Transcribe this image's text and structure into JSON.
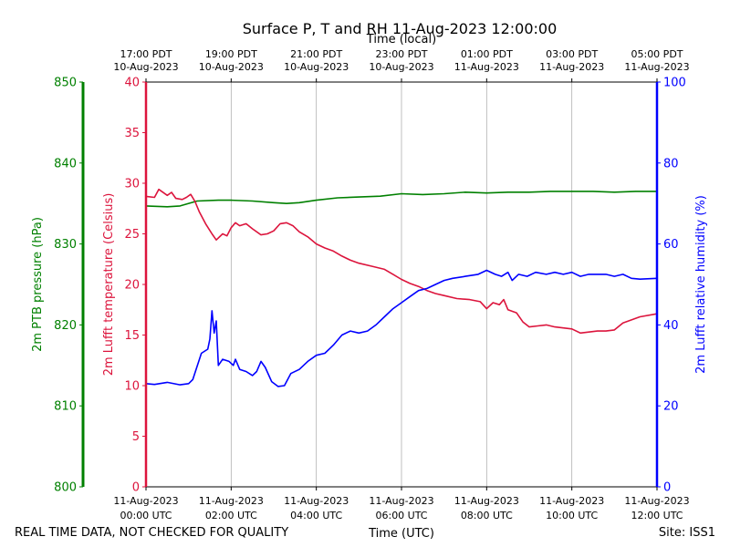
{
  "chart_data": {
    "type": "line",
    "title": "Surface P, T and RH 11-Aug-2023 12:00:00",
    "top_axis_label": "Time (local)",
    "xlabel": "Time (UTC)",
    "footer_left": "REAL TIME DATA, NOT CHECKED FOR QUALITY",
    "footer_right": "Site: ISS1",
    "x_range_hours": [
      0,
      12
    ],
    "grid": "vertical",
    "x_ticks_bottom": [
      {
        "h": 0,
        "l1": "11-Aug-2023",
        "l2": "00:00 UTC"
      },
      {
        "h": 2,
        "l1": "11-Aug-2023",
        "l2": "02:00 UTC"
      },
      {
        "h": 4,
        "l1": "11-Aug-2023",
        "l2": "04:00 UTC"
      },
      {
        "h": 6,
        "l1": "11-Aug-2023",
        "l2": "06:00 UTC"
      },
      {
        "h": 8,
        "l1": "11-Aug-2023",
        "l2": "08:00 UTC"
      },
      {
        "h": 10,
        "l1": "11-Aug-2023",
        "l2": "10:00 UTC"
      },
      {
        "h": 12,
        "l1": "11-Aug-2023",
        "l2": "12:00 UTC"
      }
    ],
    "x_ticks_top": [
      {
        "h": 0,
        "l1": "17:00 PDT",
        "l2": "10-Aug-2023"
      },
      {
        "h": 2,
        "l1": "19:00 PDT",
        "l2": "10-Aug-2023"
      },
      {
        "h": 4,
        "l1": "21:00 PDT",
        "l2": "10-Aug-2023"
      },
      {
        "h": 6,
        "l1": "23:00 PDT",
        "l2": "10-Aug-2023"
      },
      {
        "h": 8,
        "l1": "01:00 PDT",
        "l2": "11-Aug-2023"
      },
      {
        "h": 10,
        "l1": "03:00 PDT",
        "l2": "11-Aug-2023"
      },
      {
        "h": 12,
        "l1": "05:00 PDT",
        "l2": "11-Aug-2023"
      }
    ],
    "axes": {
      "pressure": {
        "label": "2m PTB pressure (hPa)",
        "range": [
          800,
          850
        ],
        "ticks": [
          800,
          810,
          820,
          830,
          840,
          850
        ],
        "color": "#008000"
      },
      "temperature": {
        "label": "2m Lufft temperature (Celsius)",
        "range": [
          0,
          40
        ],
        "ticks": [
          0,
          5,
          10,
          15,
          20,
          25,
          30,
          35,
          40
        ],
        "color": "#dc143c"
      },
      "humidity": {
        "label": "2m Lufft relative humidity (%)",
        "range": [
          0,
          100
        ],
        "ticks": [
          0,
          20,
          40,
          60,
          80,
          100
        ],
        "color": "#0000ff"
      }
    },
    "series": [
      {
        "name": "pressure",
        "axis": "pressure",
        "color": "#008000",
        "points": [
          [
            0,
            834.7
          ],
          [
            0.5,
            834.6
          ],
          [
            0.8,
            834.7
          ],
          [
            1.2,
            835.3
          ],
          [
            1.7,
            835.4
          ],
          [
            2.0,
            835.4
          ],
          [
            2.5,
            835.3
          ],
          [
            3.0,
            835.1
          ],
          [
            3.3,
            835.0
          ],
          [
            3.6,
            835.1
          ],
          [
            4.0,
            835.4
          ],
          [
            4.5,
            835.7
          ],
          [
            5.0,
            835.8
          ],
          [
            5.5,
            835.9
          ],
          [
            6.0,
            836.2
          ],
          [
            6.5,
            836.1
          ],
          [
            7.0,
            836.2
          ],
          [
            7.5,
            836.4
          ],
          [
            8.0,
            836.3
          ],
          [
            8.5,
            836.4
          ],
          [
            9.0,
            836.4
          ],
          [
            9.5,
            836.5
          ],
          [
            10.0,
            836.5
          ],
          [
            10.5,
            836.5
          ],
          [
            11.0,
            836.4
          ],
          [
            11.5,
            836.5
          ],
          [
            12.0,
            836.5
          ]
        ]
      },
      {
        "name": "temperature",
        "axis": "temperature",
        "color": "#dc143c",
        "points": [
          [
            0,
            28.7
          ],
          [
            0.2,
            28.6
          ],
          [
            0.3,
            29.4
          ],
          [
            0.5,
            28.8
          ],
          [
            0.6,
            29.1
          ],
          [
            0.7,
            28.5
          ],
          [
            0.85,
            28.4
          ],
          [
            0.95,
            28.6
          ],
          [
            1.05,
            28.9
          ],
          [
            1.15,
            28.2
          ],
          [
            1.25,
            27.2
          ],
          [
            1.4,
            26.0
          ],
          [
            1.55,
            25.0
          ],
          [
            1.65,
            24.4
          ],
          [
            1.8,
            25.0
          ],
          [
            1.9,
            24.8
          ],
          [
            2.0,
            25.6
          ],
          [
            2.1,
            26.1
          ],
          [
            2.2,
            25.8
          ],
          [
            2.35,
            26.0
          ],
          [
            2.5,
            25.5
          ],
          [
            2.7,
            24.9
          ],
          [
            2.85,
            25.0
          ],
          [
            3.0,
            25.3
          ],
          [
            3.15,
            26.0
          ],
          [
            3.3,
            26.1
          ],
          [
            3.45,
            25.8
          ],
          [
            3.6,
            25.2
          ],
          [
            3.8,
            24.7
          ],
          [
            4.0,
            24.0
          ],
          [
            4.2,
            23.6
          ],
          [
            4.4,
            23.3
          ],
          [
            4.6,
            22.8
          ],
          [
            4.8,
            22.4
          ],
          [
            5.0,
            22.1
          ],
          [
            5.3,
            21.8
          ],
          [
            5.6,
            21.5
          ],
          [
            5.8,
            21.0
          ],
          [
            6.0,
            20.5
          ],
          [
            6.2,
            20.1
          ],
          [
            6.4,
            19.8
          ],
          [
            6.6,
            19.4
          ],
          [
            6.8,
            19.1
          ],
          [
            7.0,
            18.9
          ],
          [
            7.3,
            18.6
          ],
          [
            7.6,
            18.5
          ],
          [
            7.85,
            18.3
          ],
          [
            8.0,
            17.6
          ],
          [
            8.15,
            18.2
          ],
          [
            8.3,
            18.0
          ],
          [
            8.4,
            18.5
          ],
          [
            8.5,
            17.5
          ],
          [
            8.7,
            17.2
          ],
          [
            8.85,
            16.3
          ],
          [
            9.0,
            15.8
          ],
          [
            9.2,
            15.9
          ],
          [
            9.4,
            16.0
          ],
          [
            9.6,
            15.8
          ],
          [
            9.8,
            15.7
          ],
          [
            10.0,
            15.6
          ],
          [
            10.2,
            15.2
          ],
          [
            10.4,
            15.3
          ],
          [
            10.6,
            15.4
          ],
          [
            10.8,
            15.4
          ],
          [
            11.0,
            15.5
          ],
          [
            11.2,
            16.2
          ],
          [
            11.4,
            16.5
          ],
          [
            11.6,
            16.8
          ],
          [
            12.0,
            17.1
          ]
        ]
      },
      {
        "name": "humidity",
        "axis": "humidity",
        "color": "#0000ff",
        "points": [
          [
            0,
            25.5
          ],
          [
            0.2,
            25.3
          ],
          [
            0.5,
            25.8
          ],
          [
            0.8,
            25.2
          ],
          [
            1.0,
            25.5
          ],
          [
            1.1,
            26.5
          ],
          [
            1.3,
            33.0
          ],
          [
            1.45,
            34.0
          ],
          [
            1.5,
            36.5
          ],
          [
            1.55,
            43.5
          ],
          [
            1.6,
            38.0
          ],
          [
            1.65,
            41.0
          ],
          [
            1.7,
            30.0
          ],
          [
            1.8,
            31.5
          ],
          [
            1.95,
            31.0
          ],
          [
            2.05,
            30.0
          ],
          [
            2.1,
            31.5
          ],
          [
            2.2,
            29.0
          ],
          [
            2.35,
            28.5
          ],
          [
            2.5,
            27.5
          ],
          [
            2.6,
            28.5
          ],
          [
            2.7,
            31.0
          ],
          [
            2.8,
            29.5
          ],
          [
            2.95,
            26.0
          ],
          [
            3.1,
            24.8
          ],
          [
            3.25,
            25.0
          ],
          [
            3.4,
            28.0
          ],
          [
            3.6,
            29.0
          ],
          [
            3.8,
            31.0
          ],
          [
            4.0,
            32.5
          ],
          [
            4.2,
            33.0
          ],
          [
            4.4,
            35.0
          ],
          [
            4.6,
            37.5
          ],
          [
            4.8,
            38.5
          ],
          [
            5.0,
            38.0
          ],
          [
            5.2,
            38.5
          ],
          [
            5.4,
            40.0
          ],
          [
            5.6,
            42.0
          ],
          [
            5.8,
            44.0
          ],
          [
            6.0,
            45.5
          ],
          [
            6.2,
            47.0
          ],
          [
            6.4,
            48.5
          ],
          [
            6.6,
            49.0
          ],
          [
            6.8,
            50.0
          ],
          [
            7.0,
            51.0
          ],
          [
            7.2,
            51.5
          ],
          [
            7.5,
            52.0
          ],
          [
            7.8,
            52.5
          ],
          [
            8.0,
            53.5
          ],
          [
            8.2,
            52.5
          ],
          [
            8.35,
            52.0
          ],
          [
            8.5,
            53.0
          ],
          [
            8.6,
            51.0
          ],
          [
            8.75,
            52.5
          ],
          [
            8.95,
            52.0
          ],
          [
            9.15,
            53.0
          ],
          [
            9.4,
            52.5
          ],
          [
            9.6,
            53.0
          ],
          [
            9.8,
            52.5
          ],
          [
            10.0,
            53.0
          ],
          [
            10.2,
            52.0
          ],
          [
            10.4,
            52.5
          ],
          [
            10.6,
            52.5
          ],
          [
            10.8,
            52.5
          ],
          [
            11.0,
            52.0
          ],
          [
            11.2,
            52.5
          ],
          [
            11.4,
            51.5
          ],
          [
            11.6,
            51.3
          ],
          [
            12.0,
            51.5
          ]
        ]
      }
    ]
  }
}
